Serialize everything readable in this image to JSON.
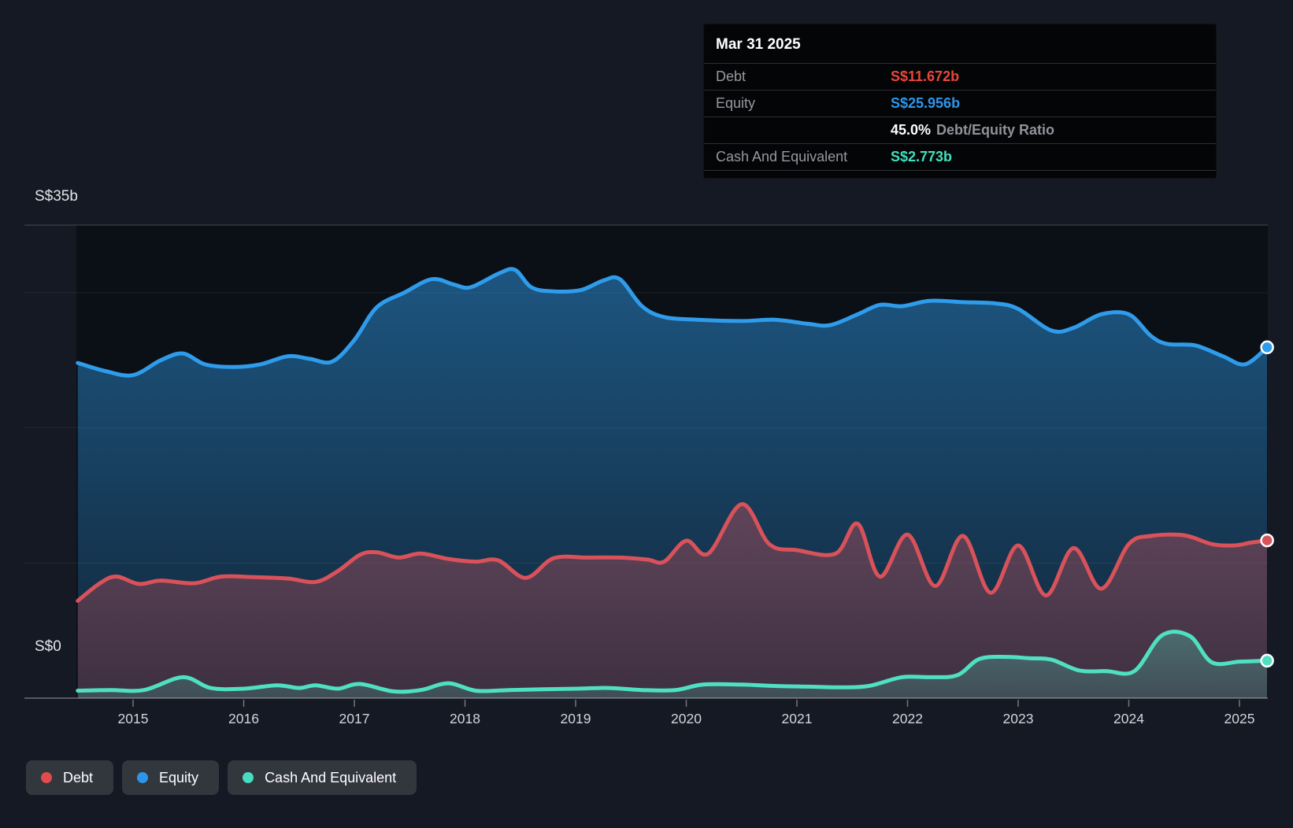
{
  "tooltip": {
    "date": "Mar 31 2025",
    "rows": [
      {
        "label": "Debt",
        "value": "S$11.672b",
        "color": "#e8473c"
      },
      {
        "label": "Equity",
        "value": "S$25.956b",
        "color": "#2e96ea"
      },
      {
        "label": "Cash And Equivalent",
        "value": "S$2.773b",
        "color": "#41e0bd"
      }
    ],
    "ratio_value": "45.0%",
    "ratio_label": "Debt/Equity Ratio"
  },
  "y_axis": {
    "top_label": "S$35b",
    "bottom_label": "S$0",
    "min": 0,
    "max": 35
  },
  "x_axis": {
    "years": [
      "2015",
      "2016",
      "2017",
      "2018",
      "2019",
      "2020",
      "2021",
      "2022",
      "2023",
      "2024",
      "2025"
    ]
  },
  "legend": {
    "items": [
      {
        "label": "Debt",
        "color": "#e04b4b"
      },
      {
        "label": "Equity",
        "color": "#2e96ea"
      },
      {
        "label": "Cash And Equivalent",
        "color": "#4adcc0"
      }
    ]
  },
  "chart_data": {
    "type": "area",
    "title": "Debt to Equity History (S$ billions)",
    "x_range": [
      2014.5,
      2025.25
    ],
    "y_range": [
      0,
      35
    ],
    "y_unit": "S$ billions",
    "y_gridlines": [
      10,
      20,
      30
    ],
    "y_max_line": 35,
    "legend_position": "bottom-left",
    "series": [
      {
        "name": "Equity",
        "color": "#2f9ceb",
        "z": 1,
        "points": [
          [
            2014.5,
            24.8
          ],
          [
            2014.75,
            24.2
          ],
          [
            2015.0,
            23.9
          ],
          [
            2015.25,
            25.0
          ],
          [
            2015.45,
            25.5
          ],
          [
            2015.65,
            24.7
          ],
          [
            2015.9,
            24.5
          ],
          [
            2016.15,
            24.7
          ],
          [
            2016.4,
            25.3
          ],
          [
            2016.6,
            25.1
          ],
          [
            2016.8,
            24.9
          ],
          [
            2017.0,
            26.5
          ],
          [
            2017.2,
            28.9
          ],
          [
            2017.45,
            30.0
          ],
          [
            2017.7,
            31.0
          ],
          [
            2017.9,
            30.6
          ],
          [
            2018.05,
            30.4
          ],
          [
            2018.3,
            31.4
          ],
          [
            2018.45,
            31.7
          ],
          [
            2018.6,
            30.4
          ],
          [
            2018.8,
            30.1
          ],
          [
            2019.05,
            30.2
          ],
          [
            2019.25,
            30.9
          ],
          [
            2019.4,
            31.0
          ],
          [
            2019.6,
            29.0
          ],
          [
            2019.8,
            28.2
          ],
          [
            2020.1,
            28.0
          ],
          [
            2020.5,
            27.9
          ],
          [
            2020.8,
            28.0
          ],
          [
            2021.1,
            27.7
          ],
          [
            2021.3,
            27.6
          ],
          [
            2021.55,
            28.4
          ],
          [
            2021.75,
            29.1
          ],
          [
            2021.95,
            29.0
          ],
          [
            2022.2,
            29.4
          ],
          [
            2022.5,
            29.3
          ],
          [
            2022.8,
            29.2
          ],
          [
            2023.0,
            28.8
          ],
          [
            2023.3,
            27.2
          ],
          [
            2023.5,
            27.4
          ],
          [
            2023.75,
            28.4
          ],
          [
            2024.0,
            28.4
          ],
          [
            2024.2,
            26.8
          ],
          [
            2024.35,
            26.2
          ],
          [
            2024.6,
            26.1
          ],
          [
            2024.85,
            25.3
          ],
          [
            2025.05,
            24.7
          ],
          [
            2025.25,
            25.956
          ]
        ]
      },
      {
        "name": "Debt",
        "color": "#d9525a",
        "z": 2,
        "points": [
          [
            2014.5,
            7.2
          ],
          [
            2014.7,
            8.5
          ],
          [
            2014.85,
            9.0
          ],
          [
            2015.05,
            8.45
          ],
          [
            2015.25,
            8.7
          ],
          [
            2015.55,
            8.5
          ],
          [
            2015.8,
            9.0
          ],
          [
            2016.1,
            8.95
          ],
          [
            2016.4,
            8.85
          ],
          [
            2016.65,
            8.6
          ],
          [
            2016.85,
            9.4
          ],
          [
            2017.05,
            10.6
          ],
          [
            2017.2,
            10.8
          ],
          [
            2017.4,
            10.4
          ],
          [
            2017.6,
            10.7
          ],
          [
            2017.85,
            10.3
          ],
          [
            2018.1,
            10.1
          ],
          [
            2018.3,
            10.2
          ],
          [
            2018.55,
            8.9
          ],
          [
            2018.8,
            10.35
          ],
          [
            2019.1,
            10.4
          ],
          [
            2019.4,
            10.4
          ],
          [
            2019.65,
            10.25
          ],
          [
            2019.8,
            10.1
          ],
          [
            2020.0,
            11.65
          ],
          [
            2020.2,
            10.7
          ],
          [
            2020.5,
            14.35
          ],
          [
            2020.75,
            11.4
          ],
          [
            2021.0,
            10.95
          ],
          [
            2021.35,
            10.7
          ],
          [
            2021.55,
            12.9
          ],
          [
            2021.75,
            9.0
          ],
          [
            2022.0,
            12.1
          ],
          [
            2022.25,
            8.3
          ],
          [
            2022.5,
            12.0
          ],
          [
            2022.75,
            7.8
          ],
          [
            2023.0,
            11.3
          ],
          [
            2023.25,
            7.6
          ],
          [
            2023.5,
            11.1
          ],
          [
            2023.75,
            8.1
          ],
          [
            2024.0,
            11.4
          ],
          [
            2024.2,
            12.0
          ],
          [
            2024.5,
            12.05
          ],
          [
            2024.75,
            11.4
          ],
          [
            2024.95,
            11.3
          ],
          [
            2025.1,
            11.5
          ],
          [
            2025.25,
            11.672
          ]
        ]
      },
      {
        "name": "Cash And Equivalent",
        "color": "#4fe0c2",
        "z": 3,
        "points": [
          [
            2014.5,
            0.55
          ],
          [
            2014.8,
            0.6
          ],
          [
            2015.1,
            0.6
          ],
          [
            2015.45,
            1.55
          ],
          [
            2015.7,
            0.75
          ],
          [
            2016.0,
            0.7
          ],
          [
            2016.3,
            0.95
          ],
          [
            2016.5,
            0.75
          ],
          [
            2016.65,
            0.95
          ],
          [
            2016.85,
            0.7
          ],
          [
            2017.05,
            1.05
          ],
          [
            2017.35,
            0.5
          ],
          [
            2017.6,
            0.6
          ],
          [
            2017.85,
            1.1
          ],
          [
            2018.1,
            0.55
          ],
          [
            2018.4,
            0.6
          ],
          [
            2018.7,
            0.65
          ],
          [
            2019.0,
            0.7
          ],
          [
            2019.3,
            0.75
          ],
          [
            2019.6,
            0.6
          ],
          [
            2019.9,
            0.6
          ],
          [
            2020.15,
            1.0
          ],
          [
            2020.5,
            1.0
          ],
          [
            2020.8,
            0.9
          ],
          [
            2021.1,
            0.85
          ],
          [
            2021.4,
            0.8
          ],
          [
            2021.65,
            0.9
          ],
          [
            2021.95,
            1.55
          ],
          [
            2022.2,
            1.55
          ],
          [
            2022.45,
            1.7
          ],
          [
            2022.65,
            2.9
          ],
          [
            2022.9,
            3.05
          ],
          [
            2023.1,
            2.95
          ],
          [
            2023.3,
            2.85
          ],
          [
            2023.55,
            2.05
          ],
          [
            2023.8,
            2.0
          ],
          [
            2024.05,
            2.0
          ],
          [
            2024.3,
            4.65
          ],
          [
            2024.55,
            4.6
          ],
          [
            2024.75,
            2.65
          ],
          [
            2025.0,
            2.7
          ],
          [
            2025.25,
            2.773
          ]
        ]
      }
    ]
  }
}
